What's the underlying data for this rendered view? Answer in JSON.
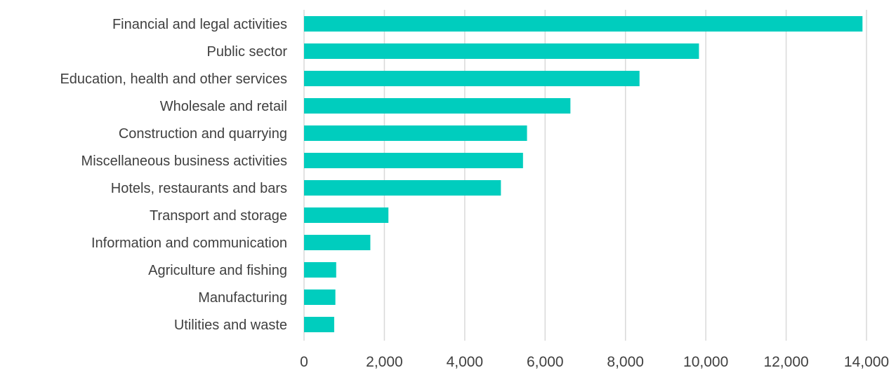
{
  "chart_data": {
    "type": "bar",
    "orientation": "horizontal",
    "title": "",
    "xlabel": "",
    "ylabel": "",
    "categories": [
      "Financial and legal activities",
      "Public sector",
      "Education, health and other services",
      "Wholesale and retail",
      "Construction and quarrying",
      "Miscellaneous business activities",
      "Hotels, restaurants and bars",
      "Transport and storage",
      "Information and communication",
      "Agriculture and fishing",
      "Manufacturing",
      "Utilities and waste"
    ],
    "values": [
      13900,
      9830,
      8350,
      6630,
      5550,
      5450,
      4900,
      2100,
      1650,
      800,
      780,
      750
    ],
    "xlim": [
      0,
      14000
    ],
    "x_ticks": [
      0,
      2000,
      4000,
      6000,
      8000,
      10000,
      12000,
      14000
    ],
    "x_tick_labels": [
      "0",
      "2,000",
      "4,000",
      "6,000",
      "8,000",
      "10,000",
      "12,000",
      "14,000"
    ],
    "grid": "vertical",
    "legend": "none",
    "bar_color": "#00CDBE",
    "gridline_color": "#D9D9D9",
    "text_color": "#404040"
  }
}
